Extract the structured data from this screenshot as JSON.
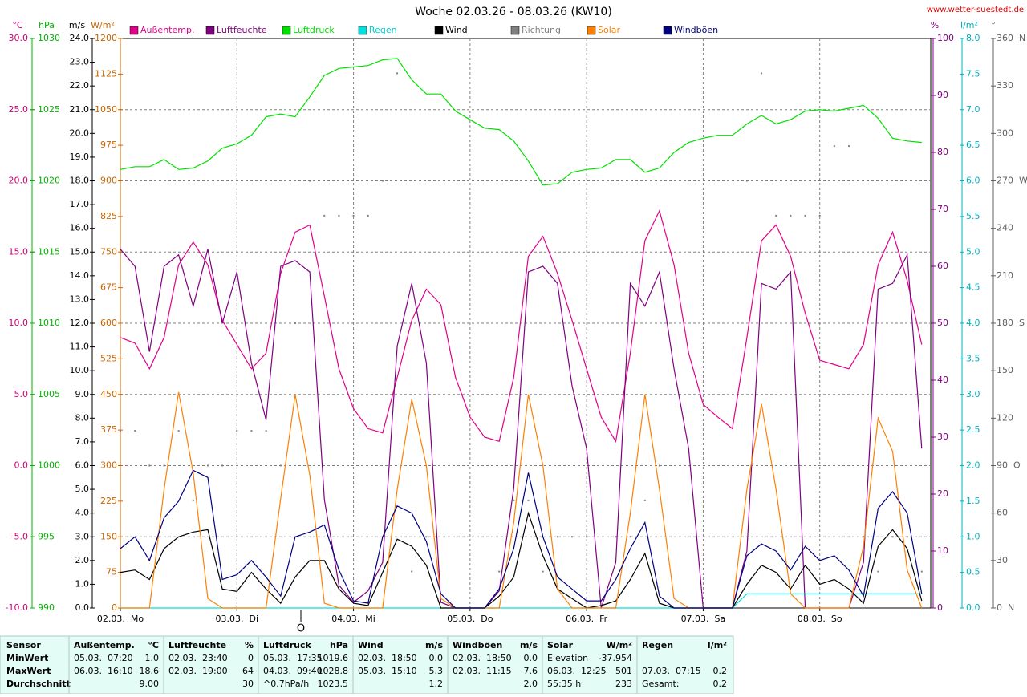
{
  "chart_data": {
    "type": "line",
    "title": "Woche 02.03.26 - 08.03.26 (KW10)",
    "source": "www.wetter-suestedt.de",
    "wind_marker": "O",
    "grid": true,
    "xlim": [
      0,
      168
    ],
    "xticks": [
      {
        "value": 0,
        "label": "02.03.  Mo"
      },
      {
        "value": 24,
        "label": "03.03.  Di"
      },
      {
        "value": 48,
        "label": "04.03.  Mi"
      },
      {
        "value": 72,
        "label": "05.03.  Do"
      },
      {
        "value": 96,
        "label": "06.03.  Fr"
      },
      {
        "value": 120,
        "label": "07.03.  Sa"
      },
      {
        "value": 144,
        "label": "08.03.  So"
      }
    ],
    "x": [
      0,
      3,
      6,
      9,
      12,
      15,
      18,
      21,
      24,
      27,
      30,
      33,
      36,
      39,
      42,
      45,
      48,
      51,
      54,
      57,
      60,
      63,
      66,
      69,
      72,
      75,
      78,
      81,
      84,
      87,
      90,
      93,
      96,
      99,
      102,
      105,
      108,
      111,
      114,
      117,
      120,
      123,
      126,
      129,
      132,
      135,
      138,
      141,
      144,
      147,
      150,
      153,
      156,
      159,
      162,
      165
    ],
    "axes": [
      {
        "id": "temp",
        "label": "°C",
        "color": "#cc0077",
        "lim": [
          -10,
          30
        ],
        "ticks": [
          {
            "value": -10,
            "label": "-10.0"
          },
          {
            "value": -5,
            "label": "-5.0"
          },
          {
            "value": 0,
            "label": "0.0"
          },
          {
            "value": 5,
            "label": "5.0"
          },
          {
            "value": 10,
            "label": "10.0"
          },
          {
            "value": 15,
            "label": "15.0"
          },
          {
            "value": 20,
            "label": "20.0"
          },
          {
            "value": 25,
            "label": "25.0"
          },
          {
            "value": 30,
            "label": "30.0"
          }
        ]
      },
      {
        "id": "pressure",
        "label": "hPa",
        "color": "#00b400",
        "lim": [
          990,
          1030
        ],
        "ticks": [
          990,
          995,
          1000,
          1005,
          1010,
          1015,
          1020,
          1025,
          1030
        ]
      },
      {
        "id": "wind",
        "label": "m/s",
        "color": "#000000",
        "lim": [
          0,
          24
        ],
        "ticks": [
          {
            "value": 0,
            "label": "0.0"
          },
          {
            "value": 1,
            "label": "1.0"
          },
          {
            "value": 2,
            "label": "2.0"
          },
          {
            "value": 3,
            "label": "3.0"
          },
          {
            "value": 4,
            "label": "4.0"
          },
          {
            "value": 5,
            "label": "5.0"
          },
          {
            "value": 6,
            "label": "6.0"
          },
          {
            "value": 7,
            "label": "7.0"
          },
          {
            "value": 8,
            "label": "8.0"
          },
          {
            "value": 9,
            "label": "9.0"
          },
          {
            "value": 10,
            "label": "10.0"
          },
          {
            "value": 11,
            "label": "11.0"
          },
          {
            "value": 12,
            "label": "12.0"
          },
          {
            "value": 13,
            "label": "13.0"
          },
          {
            "value": 14,
            "label": "14.0"
          },
          {
            "value": 15,
            "label": "15.0"
          },
          {
            "value": 16,
            "label": "16.0"
          },
          {
            "value": 17,
            "label": "17.0"
          },
          {
            "value": 18,
            "label": "18.0"
          },
          {
            "value": 19,
            "label": "19.0"
          },
          {
            "value": 20,
            "label": "20.0"
          },
          {
            "value": 21,
            "label": "21.0"
          },
          {
            "value": 22,
            "label": "22.0"
          },
          {
            "value": 23,
            "label": "23.0"
          },
          {
            "value": 24,
            "label": "24.0"
          }
        ]
      },
      {
        "id": "solar",
        "label": "W/m²",
        "color": "#c86400",
        "lim": [
          0,
          1200
        ],
        "ticks": [
          0,
          75,
          150,
          225,
          300,
          375,
          450,
          525,
          600,
          675,
          750,
          825,
          900,
          975,
          1050,
          1125,
          1200
        ]
      },
      {
        "id": "humidity",
        "label": "%",
        "color": "#800080",
        "lim": [
          0,
          100
        ],
        "ticks": [
          0,
          10,
          20,
          30,
          40,
          50,
          60,
          70,
          80,
          90,
          100
        ]
      },
      {
        "id": "rain",
        "label": "l/m²",
        "color": "#00b0c0",
        "lim": [
          0,
          8
        ],
        "ticks": [
          {
            "value": 0,
            "label": "0.0"
          },
          0.5,
          {
            "value": 1,
            "label": "1.0"
          },
          1.5,
          {
            "value": 2,
            "label": "2.0"
          },
          2.5,
          {
            "value": 3,
            "label": "3.0"
          },
          3.5,
          {
            "value": 4,
            "label": "4.0"
          },
          4.5,
          {
            "value": 5,
            "label": "5.0"
          },
          5.5,
          {
            "value": 6,
            "label": "6.0"
          },
          6.5,
          {
            "value": 7,
            "label": "7.0"
          },
          7.5,
          {
            "value": 8,
            "label": "8.0"
          }
        ]
      },
      {
        "id": "direction",
        "label": "°",
        "color": "#606060",
        "lim": [
          0,
          360
        ],
        "ticks": [
          {
            "value": 0,
            "label": "0  N"
          },
          30,
          60,
          {
            "value": 90,
            "label": "90  O"
          },
          120,
          150,
          {
            "value": 180,
            "label": "180  S"
          },
          210,
          240,
          {
            "value": 270,
            "label": "270  W"
          },
          300,
          330,
          {
            "value": 360,
            "label": "360  N"
          }
        ]
      }
    ],
    "series": [
      {
        "name": "Außentemp.",
        "axis": "temp",
        "color": "#e0008a",
        "values": [
          9.0,
          8.6,
          6.8,
          9.0,
          14.1,
          15.7,
          14.1,
          10.2,
          8.5,
          6.8,
          7.9,
          13.5,
          16.4,
          16.9,
          11.9,
          6.8,
          4.0,
          2.6,
          2.3,
          6.2,
          10.2,
          12.4,
          11.3,
          6.2,
          3.4,
          2.0,
          1.7,
          6.2,
          14.7,
          16.1,
          13.5,
          10.2,
          6.8,
          3.4,
          1.7,
          7.9,
          15.8,
          17.9,
          14.1,
          7.9,
          4.3,
          3.4,
          2.6,
          9.0,
          15.8,
          16.9,
          14.7,
          10.7,
          7.4,
          7.1,
          6.8,
          8.5,
          14.1,
          16.4,
          13.0,
          8.5
        ]
      },
      {
        "name": "Luftfeuchte",
        "axis": "humidity",
        "color": "#800080",
        "values": [
          63,
          60,
          45,
          60,
          62,
          53,
          63,
          50,
          59,
          43,
          33,
          60,
          61,
          59,
          19,
          4,
          1,
          3,
          8,
          46,
          57,
          43,
          1,
          0,
          0,
          0,
          3,
          21,
          59,
          60,
          57,
          39,
          28,
          0,
          8,
          57,
          53,
          59,
          42,
          28,
          0,
          0,
          0,
          10,
          57,
          56,
          59,
          0,
          0,
          0,
          0,
          8,
          56,
          57,
          62,
          28
        ]
      },
      {
        "name": "Luftdruck",
        "axis": "pressure",
        "color": "#00e000",
        "values": [
          1020.8,
          1021.0,
          1021.0,
          1021.5,
          1020.8,
          1020.9,
          1021.4,
          1022.3,
          1022.6,
          1023.2,
          1024.5,
          1024.7,
          1024.5,
          1025.9,
          1027.4,
          1027.9,
          1028.0,
          1028.1,
          1028.5,
          1028.6,
          1027.1,
          1026.1,
          1026.1,
          1024.9,
          1024.3,
          1023.7,
          1023.6,
          1022.8,
          1021.4,
          1019.7,
          1019.8,
          1020.6,
          1020.8,
          1020.9,
          1021.5,
          1021.5,
          1020.6,
          1020.9,
          1022.0,
          1022.7,
          1023.0,
          1023.2,
          1023.2,
          1024.0,
          1024.6,
          1024.0,
          1024.3,
          1024.9,
          1025.0,
          1024.9,
          1025.1,
          1025.3,
          1024.4,
          1023.0,
          1022.8,
          1022.7
        ]
      },
      {
        "name": "Regen",
        "axis": "rain",
        "color": "#00e0e0",
        "values": [
          0,
          0,
          0,
          0,
          0,
          0,
          0,
          0,
          0,
          0,
          0,
          0,
          0,
          0,
          0,
          0,
          0,
          0,
          0,
          0,
          0,
          0,
          0,
          0,
          0,
          0,
          0,
          0,
          0,
          0,
          0,
          0,
          0,
          0,
          0,
          0,
          0,
          0,
          0,
          0,
          0,
          0,
          0,
          0.2,
          0.2,
          0.2,
          0.2,
          0.2,
          0.2,
          0.2,
          0.2,
          0.2,
          0.2,
          0.2,
          0.2,
          0.2
        ]
      },
      {
        "name": "Wind",
        "axis": "wind",
        "color": "#000000",
        "values": [
          1.5,
          1.6,
          1.2,
          2.5,
          3.0,
          3.2,
          3.3,
          0.8,
          0.7,
          1.5,
          0.8,
          0.2,
          1.3,
          2.0,
          2.0,
          0.8,
          0.2,
          0.1,
          1.5,
          2.9,
          2.6,
          1.8,
          0,
          0,
          0,
          0,
          0.5,
          1.3,
          4.0,
          2.2,
          0.8,
          0.4,
          0,
          0.1,
          0.3,
          1.2,
          2.3,
          0.2,
          0,
          0,
          0,
          0,
          0,
          1.0,
          1.8,
          1.5,
          0.8,
          1.8,
          1.0,
          1.2,
          0.8,
          0.2,
          2.6,
          3.3,
          2.5,
          0.3
        ]
      },
      {
        "name": "Richtung",
        "axis": "direction",
        "color": "#808080",
        "style": "dots",
        "values": [
          112,
          112,
          90,
          90,
          112,
          68,
          90,
          90,
          112,
          112,
          112,
          90,
          180,
          270,
          248,
          248,
          248,
          248,
          270,
          338,
          23,
          45,
          null,
          null,
          null,
          null,
          23,
          68,
          68,
          23,
          45,
          45,
          45,
          null,
          45,
          45,
          68,
          90,
          null,
          null,
          null,
          null,
          null,
          270,
          338,
          248,
          248,
          248,
          248,
          292,
          292,
          45,
          23,
          45,
          45,
          23
        ]
      },
      {
        "name": "Solar",
        "axis": "solar",
        "color": "#ff8000",
        "values": [
          0,
          0,
          0,
          250,
          455,
          284,
          20,
          0,
          0,
          0,
          0,
          230,
          450,
          280,
          10,
          0,
          0,
          0,
          0,
          250,
          440,
          300,
          20,
          0,
          0,
          0,
          0,
          180,
          450,
          300,
          40,
          0,
          0,
          0,
          0,
          200,
          450,
          250,
          20,
          0,
          0,
          0,
          0,
          250,
          430,
          250,
          30,
          0,
          0,
          0,
          0,
          130,
          400,
          330,
          80,
          0
        ]
      },
      {
        "name": "Windböen",
        "axis": "wind",
        "color": "#000080",
        "values": [
          2.5,
          3.0,
          2.0,
          3.8,
          4.5,
          5.8,
          5.5,
          1.2,
          1.4,
          2.0,
          1.3,
          0.5,
          3.0,
          3.2,
          3.5,
          1.6,
          0.3,
          0.2,
          3.0,
          4.3,
          4.0,
          2.8,
          0.6,
          0,
          0,
          0,
          0.8,
          2.5,
          5.7,
          3.0,
          1.3,
          0.8,
          0.3,
          0.3,
          1.2,
          2.5,
          3.6,
          0.5,
          0,
          0,
          0,
          0,
          0,
          2.2,
          2.7,
          2.4,
          1.6,
          2.6,
          2.0,
          2.2,
          1.6,
          0.5,
          4.2,
          4.9,
          4.0,
          0.6
        ]
      }
    ]
  },
  "table": {
    "row_labels": [
      "Sensor",
      "MinWert",
      "MaxWert",
      "Durchschnitt"
    ],
    "groups": [
      {
        "name": "Außentemp.",
        "unit": "°C",
        "rows": [
          [
            "05.03.  07:20",
            "1.0"
          ],
          [
            "06.03.  16:10",
            "18.6"
          ],
          [
            null,
            "9.00"
          ]
        ]
      },
      {
        "name": "Luftfeuchte",
        "unit": "%",
        "rows": [
          [
            "02.03.  23:40",
            "0"
          ],
          [
            "02.03.  19:00",
            "64"
          ],
          [
            null,
            "30"
          ]
        ]
      },
      {
        "name": "Luftdruck",
        "unit": "hPa",
        "rows": [
          [
            "05.03.  17:35",
            "1019.6"
          ],
          [
            "04.03.  09:40",
            "1028.8"
          ],
          [
            "^0.7hPa/h",
            "1023.5"
          ]
        ]
      },
      {
        "name": "Wind",
        "unit": "m/s",
        "rows": [
          [
            "02.03.  18:50",
            "0.0"
          ],
          [
            "05.03.  15:10",
            "5.3"
          ],
          [
            null,
            "1.2"
          ]
        ]
      },
      {
        "name": "Windböen",
        "unit": "m/s",
        "rows": [
          [
            "02.03.  18:50",
            "0.0"
          ],
          [
            "02.03.  11:15",
            "7.6"
          ],
          [
            null,
            "2.0"
          ]
        ]
      },
      {
        "name": "Solar",
        "unit": "W/m²",
        "rows": [
          [
            "Elevation",
            "-37.954"
          ],
          [
            "06.03.  12:25",
            "501"
          ],
          [
            "55:35 h",
            "233"
          ]
        ]
      },
      {
        "name": "Regen",
        "unit": "l/m²",
        "rows": [
          [
            null,
            null
          ],
          [
            "07.03.  07:15",
            "0.2"
          ],
          [
            "Gesamt:",
            "0.2"
          ]
        ]
      }
    ]
  }
}
